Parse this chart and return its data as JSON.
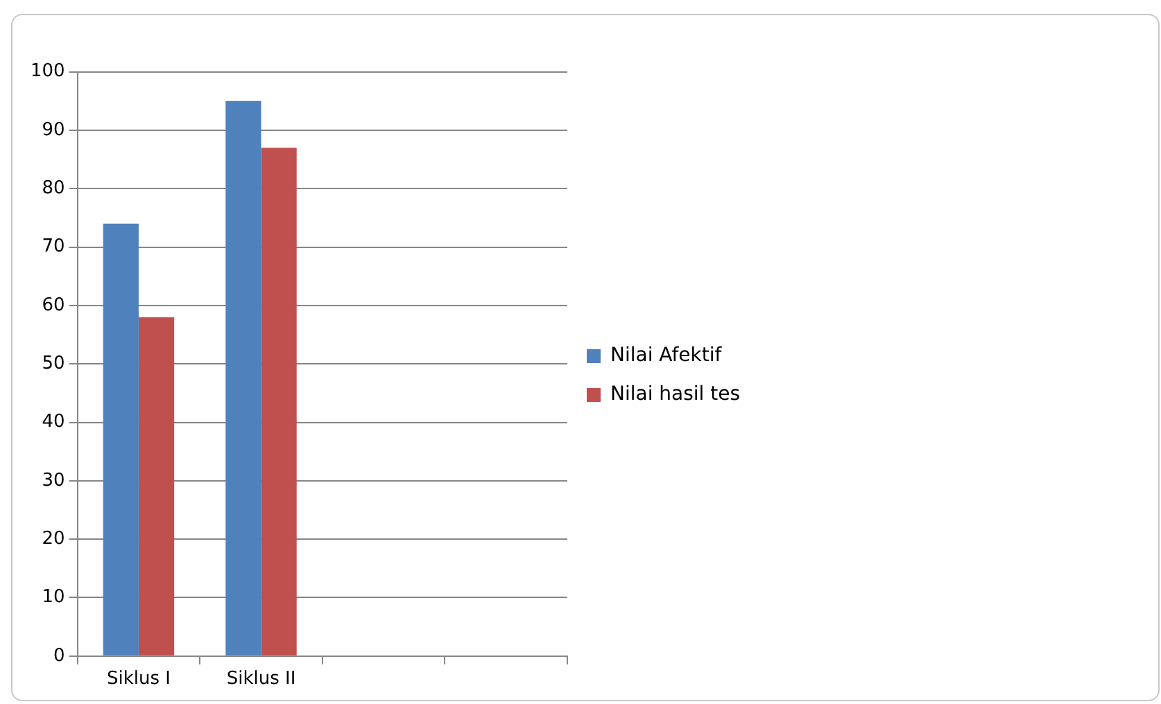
{
  "chart_data": {
    "type": "bar",
    "categories": [
      "Siklus I",
      "Siklus II",
      null,
      null
    ],
    "series": [
      {
        "name": "Nilai Afektif",
        "color": "#4f81bd",
        "values": [
          74,
          95,
          null,
          null
        ]
      },
      {
        "name": "Nilai hasil tes",
        "color": "#c0504d",
        "values": [
          58,
          87,
          null,
          null
        ]
      }
    ],
    "ylim": [
      0,
      100
    ],
    "yticks": [
      0,
      10,
      20,
      30,
      40,
      50,
      60,
      70,
      80,
      90,
      100
    ],
    "grid": "y",
    "legend": "right"
  }
}
